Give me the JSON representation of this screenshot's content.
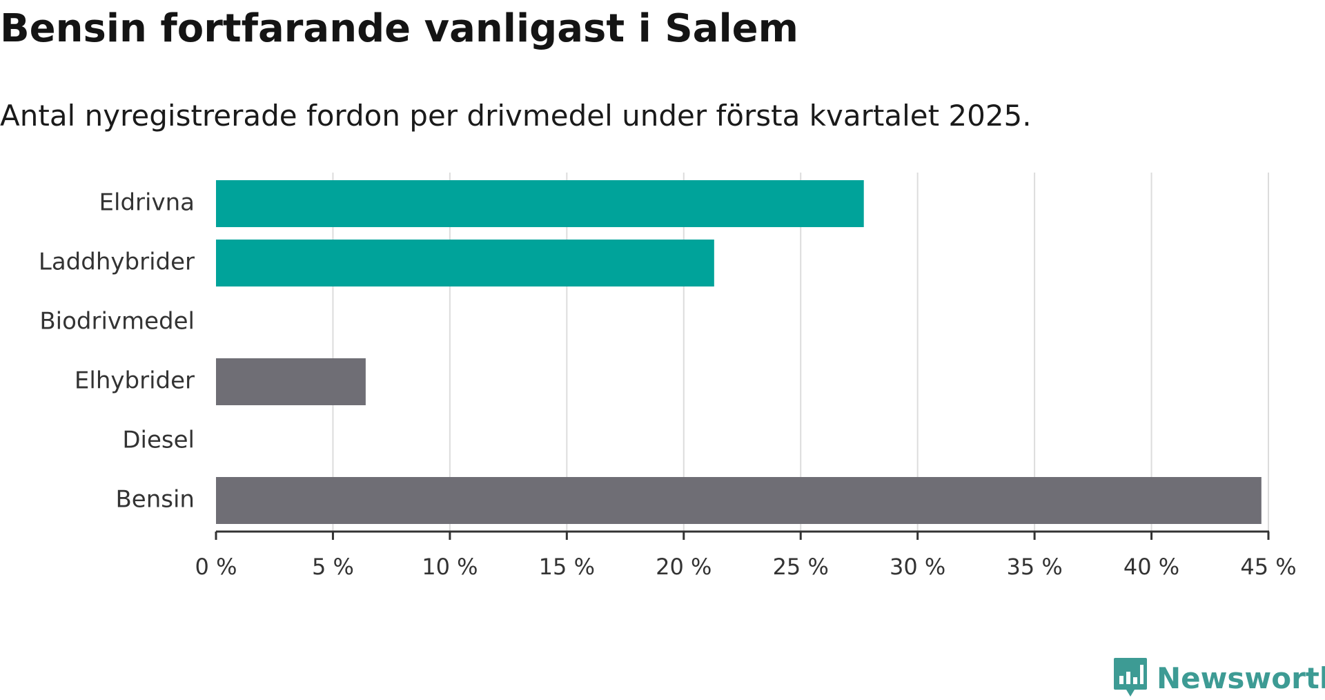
{
  "title": "Bensin fortfarande vanligast i Salem",
  "subtitle": "Antal nyregistrerade fordon per drivmedel under första kvartalet 2025.",
  "brand": {
    "name": "Newsworthy",
    "icon": "newsworthy-logo-icon",
    "color": "#3d9b94"
  },
  "chart_data": {
    "type": "bar",
    "orientation": "horizontal",
    "categories": [
      "Eldrivna",
      "Laddhybrider",
      "Biodrivmedel",
      "Elhybrider",
      "Diesel",
      "Bensin"
    ],
    "values": [
      27.7,
      21.3,
      0,
      6.4,
      0,
      44.7
    ],
    "colors": [
      "#00a39a",
      "#00a39a",
      "#00a39a",
      "#6f6e75",
      "#6f6e75",
      "#6f6e75"
    ],
    "xlim": [
      0,
      45
    ],
    "ticks": [
      0,
      5,
      10,
      15,
      20,
      25,
      30,
      35,
      40,
      45
    ],
    "tick_labels": [
      "0 %",
      "5 %",
      "10 %",
      "15 %",
      "20 %",
      "25 %",
      "30 %",
      "35 %",
      "40 %",
      "45 %"
    ],
    "grid": true,
    "xlabel": "",
    "ylabel": ""
  }
}
